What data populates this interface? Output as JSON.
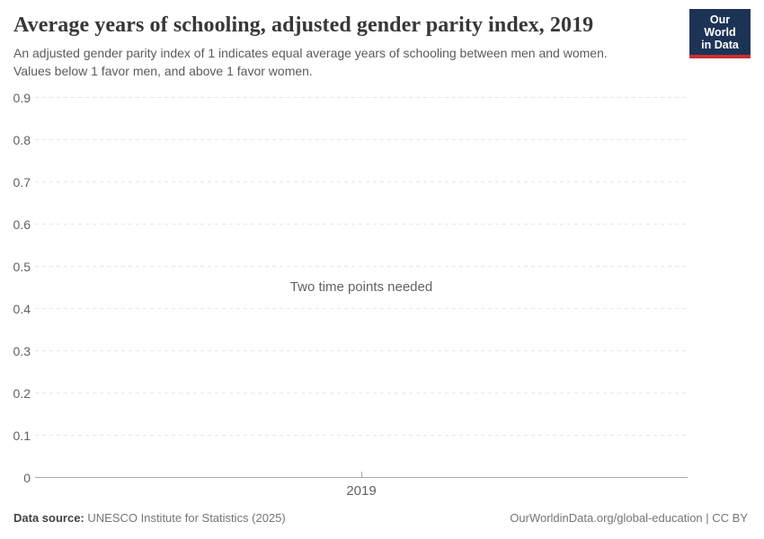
{
  "header": {
    "title": "Average years of schooling, adjusted gender parity index, 2019",
    "subtitle_line1": "An adjusted gender parity index of 1 indicates equal average years of schooling between men and women.",
    "subtitle_line2": "Values below 1 favor men, and above 1 favor women.",
    "logo": {
      "line1": "Our World",
      "line2": "in Data"
    }
  },
  "chart_data": {
    "type": "line",
    "title": "Average years of schooling, adjusted gender parity index, 2019",
    "series": [],
    "empty_message": "Two time points needed",
    "x": {
      "ticks": [
        "2019"
      ]
    },
    "y": {
      "ticks": [
        "0",
        "0.1",
        "0.2",
        "0.3",
        "0.4",
        "0.5",
        "0.6",
        "0.7",
        "0.8",
        "0.9"
      ],
      "min": 0,
      "max": 0.9,
      "grid": "dashed-horizontal"
    },
    "legend_position": "none"
  },
  "footer": {
    "source_label": "Data source:",
    "source_value": "UNESCO Institute for Statistics (2025)",
    "credit": "OurWorldinData.org/global-education | CC BY"
  },
  "colors": {
    "title_color": "#383636",
    "subtitle_color": "#5b5b5b",
    "tick_color": "#616161",
    "grid_color": "#e7e7e7",
    "axis_color": "#a8a8a8",
    "message_color": "#636363",
    "footer_color": "#757575",
    "footer_bold_color": "#424242",
    "logo_bg": "#1d3356",
    "logo_accent": "#c5302f"
  }
}
